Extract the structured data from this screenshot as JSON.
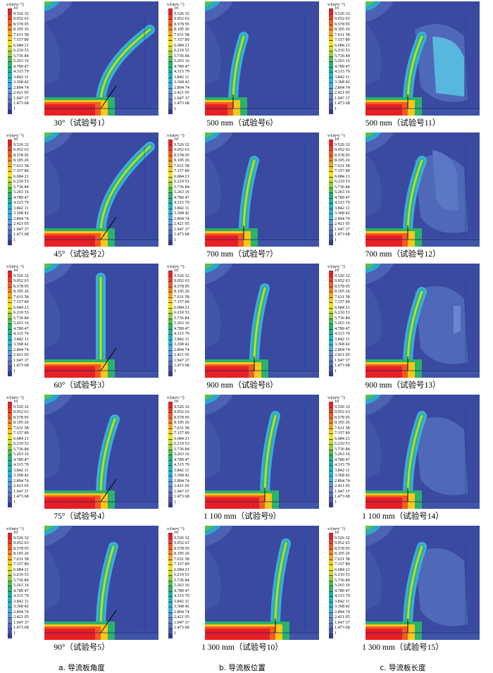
{
  "colorbar": {
    "unit_label": "v/(m•s⁻¹)",
    "ticks": [
      "10",
      "9.526 32",
      "9.052 63",
      "8.578 95",
      "8.105 26",
      "7.631 58",
      "7.157 89",
      "6.684 21",
      "6.210 53",
      "5.736 84",
      "5.263 16",
      "4.789 47",
      "4.315 79",
      "3.842 11",
      "3.368 42",
      "2.894 74",
      "2.421 05",
      "1.947 37",
      "1.473 68",
      "1"
    ],
    "colors": [
      "#e81e25",
      "#ee3a23",
      "#f15a22",
      "#f47b20",
      "#f7a21b",
      "#f9c715",
      "#f5e210",
      "#c8dc2a",
      "#8fce3d",
      "#4fbf4a",
      "#29b36b",
      "#20b294",
      "#1fb3bd",
      "#29b2d9",
      "#46aae1",
      "#5b99d6",
      "#5f86c9",
      "#5b6fb9",
      "#4a55a8",
      "#2f3a93"
    ]
  },
  "columns": [
    {
      "title": "a. 导流板角度",
      "panels": [
        "30°（试验号1）",
        "45°（试验号2）",
        "60°（试验号3）",
        "75°（试验号4）",
        "90°（试验号5）"
      ]
    },
    {
      "title": "b. 导流板位置",
      "panels": [
        "500 mm（试验号6）",
        "700 mm（试验号7）",
        "900 mm（试验号8）",
        "1 100 mm（试验号9）",
        "1 300 mm（试验号10）"
      ]
    },
    {
      "title": "c. 导流板长度",
      "panels": [
        "500 mm（试验号11）",
        "700 mm（试验号12）",
        "900 mm（试验号13）",
        "1 100 mm（试验号14）",
        "1 300 mm（试验号15）"
      ]
    }
  ]
}
